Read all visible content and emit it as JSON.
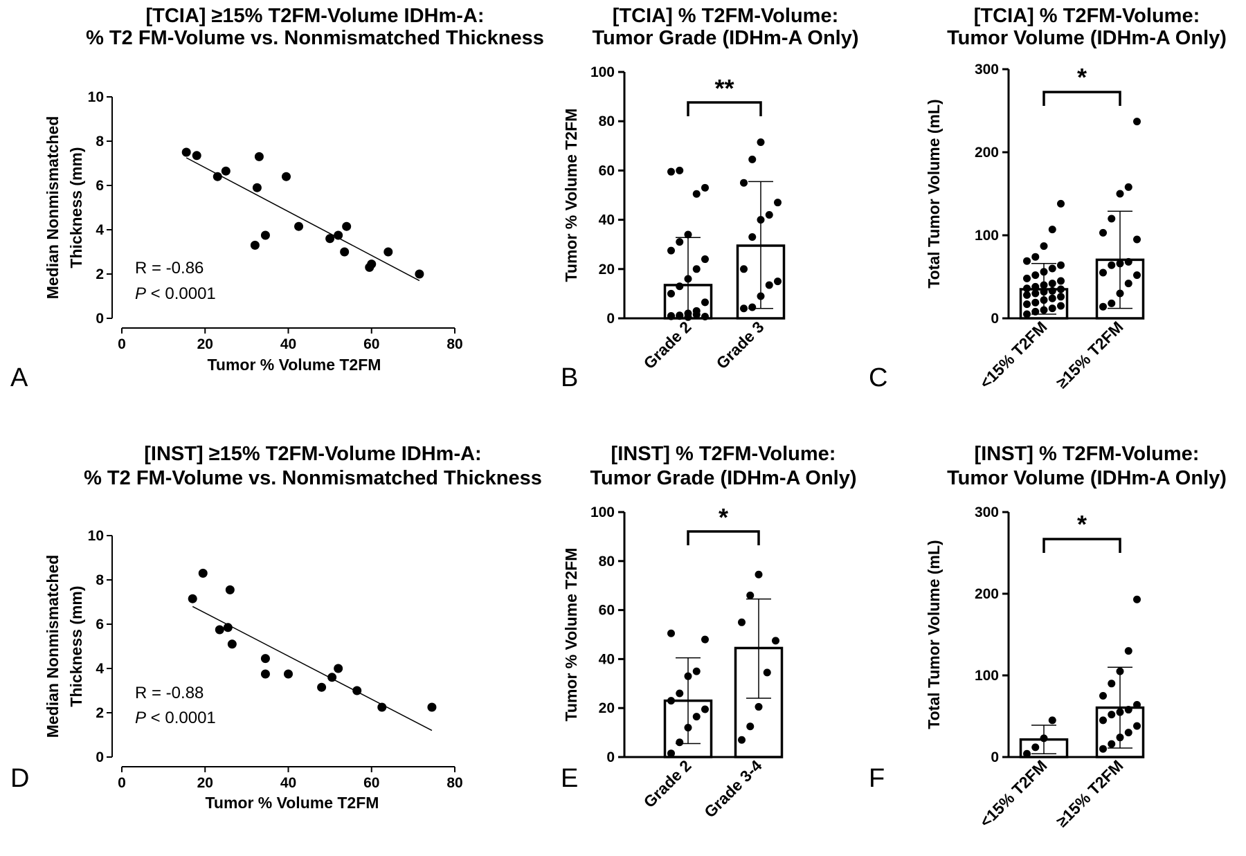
{
  "chart_data": [
    {
      "panel": "A",
      "type": "scatter",
      "title": [
        "[TCIA] ≥15% T2FM-Volume IDHm-A:",
        "% T2 FM-Volume vs. Nonmismatched Thickness"
      ],
      "xlabel": "Tumor % Volume   T2FM",
      "ylabel": [
        "Median Nonmismatched",
        "Thickness (mm)"
      ],
      "xlim": [
        0,
        80
      ],
      "ylim": [
        0,
        10
      ],
      "xticks": [
        0,
        20,
        40,
        60,
        80
      ],
      "yticks": [
        0,
        2,
        4,
        6,
        8,
        10
      ],
      "x": [
        15.5,
        18,
        23,
        25,
        32,
        32.5,
        33,
        34.5,
        39.5,
        42.5,
        50,
        52,
        53.5,
        54,
        59.5,
        60,
        64,
        71.5
      ],
      "y": [
        7.5,
        7.35,
        6.4,
        6.65,
        3.3,
        5.9,
        7.3,
        3.75,
        6.4,
        4.15,
        3.6,
        3.75,
        3.0,
        4.15,
        2.3,
        2.45,
        3.0,
        2.0
      ],
      "fit": {
        "x": [
          15.5,
          71.5
        ],
        "y": [
          7.25,
          1.7
        ]
      },
      "stats": {
        "r": "R = -0.86",
        "p_symbol": "P",
        "p_rest": " < 0.0001"
      },
      "grid": false
    },
    {
      "panel": "B",
      "type": "bar",
      "title": [
        "[TCIA] % T2FM-Volume:",
        "Tumor Grade (IDHm-A Only)"
      ],
      "ylabel": "Tumor % Volume T2FM",
      "categories": [
        "Grade 2",
        "Grade 3"
      ],
      "values": [
        13.5,
        29.5
      ],
      "sd_upper": [
        32.8,
        55.5
      ],
      "sd_lower": [
        0,
        4.0
      ],
      "ylim": [
        0,
        100
      ],
      "yticks": [
        0,
        20,
        40,
        60,
        80,
        100
      ],
      "points": [
        [
          0.8,
          1.2,
          0.5,
          1.5,
          0.7,
          1.0,
          0.9,
          2.0,
          3.0,
          6.5,
          10,
          13,
          16,
          20,
          24,
          27.5,
          31,
          34,
          50.5,
          53,
          59.5,
          60
        ],
        [
          4.0,
          4.5,
          9,
          13.5,
          15,
          20,
          33,
          40,
          42,
          47,
          55,
          64.5,
          71.5
        ]
      ],
      "significance": "**",
      "grid": false
    },
    {
      "panel": "C",
      "type": "bar",
      "title": [
        "[TCIA] % T2FM-Volume:",
        "Tumor Volume (IDHm-A Only)"
      ],
      "ylabel": "Total Tumor Volume (mL)",
      "categories": [
        "<15% T2FM",
        "≥15% T2FM"
      ],
      "values": [
        35,
        70.5
      ],
      "sd_upper": [
        66,
        129
      ],
      "sd_lower": [
        5,
        12
      ],
      "ylim": [
        0,
        300
      ],
      "yticks": [
        0,
        100,
        200,
        300
      ],
      "points": [
        [
          5,
          8,
          10,
          12,
          15,
          17,
          19,
          22,
          24,
          26,
          28,
          30,
          32,
          33,
          35,
          36,
          38,
          40,
          42,
          45,
          48,
          52,
          56,
          60,
          64,
          69,
          74,
          87,
          107,
          138
        ],
        [
          14,
          18,
          30,
          42,
          52,
          55,
          64,
          66,
          68,
          95,
          103,
          120,
          150,
          158,
          237
        ]
      ],
      "significance": "*",
      "grid": false
    },
    {
      "panel": "D",
      "type": "scatter",
      "title": [
        "[INST] ≥15% T2FM-Volume IDHm-A:",
        "% T2 FM-Volume vs. Nonmismatched Thickness"
      ],
      "xlabel": "Tumor % Volume   T2FM",
      "ylabel": [
        "Median Nonmismatched",
        "Thickness (mm)"
      ],
      "xlim": [
        0,
        80
      ],
      "ylim": [
        0,
        10
      ],
      "xticks": [
        0,
        20,
        40,
        60,
        80
      ],
      "yticks": [
        0,
        2,
        4,
        6,
        8,
        10
      ],
      "x": [
        17,
        19.5,
        23.5,
        25.5,
        26,
        26.5,
        34.5,
        34.5,
        40,
        48,
        50.5,
        52,
        56.5,
        62.5,
        74.5
      ],
      "y": [
        7.15,
        8.3,
        5.75,
        5.85,
        7.55,
        5.1,
        3.75,
        4.45,
        3.75,
        3.15,
        3.6,
        4.0,
        3.0,
        2.25,
        2.25
      ],
      "fit": {
        "x": [
          17,
          74.5
        ],
        "y": [
          6.8,
          1.2
        ]
      },
      "stats": {
        "r": "R = -0.88",
        "p_symbol": "P",
        "p_rest": " < 0.0001"
      },
      "grid": false
    },
    {
      "panel": "E",
      "type": "bar",
      "title": [
        "[INST] % T2FM-Volume:",
        "Tumor Grade (IDHm-A Only)"
      ],
      "ylabel": "Tumor % Volume T2FM",
      "categories": [
        "Grade 2",
        "Grade 3-4"
      ],
      "values": [
        23,
        44.5
      ],
      "sd_upper": [
        40.5,
        64.5
      ],
      "sd_lower": [
        5.5,
        24
      ],
      "ylim": [
        0,
        100
      ],
      "yticks": [
        0,
        20,
        40,
        60,
        80,
        100
      ],
      "points": [
        [
          1.5,
          6,
          12,
          16.5,
          19.5,
          23,
          26,
          33,
          35,
          48,
          50.5
        ],
        [
          7,
          12.5,
          20.5,
          34.5,
          47.5,
          55,
          66,
          74.5
        ]
      ],
      "significance": "*",
      "grid": false
    },
    {
      "panel": "F",
      "type": "bar",
      "title": [
        "[INST] % T2FM-Volume:",
        "Tumor Volume (IDHm-A Only)"
      ],
      "ylabel": "Total Tumor Volume (mL)",
      "categories": [
        "<15% T2FM",
        "≥15% T2FM"
      ],
      "values": [
        21.5,
        60.5
      ],
      "sd_upper": [
        39,
        110
      ],
      "sd_lower": [
        4,
        11
      ],
      "ylim": [
        0,
        300
      ],
      "yticks": [
        0,
        100,
        200,
        300
      ],
      "points": [
        [
          4,
          12,
          23,
          45
        ],
        [
          10,
          16,
          24,
          30,
          38,
          45,
          52,
          55,
          58,
          64,
          75,
          90,
          105,
          130,
          193
        ]
      ],
      "significance": "*",
      "grid": false
    }
  ]
}
